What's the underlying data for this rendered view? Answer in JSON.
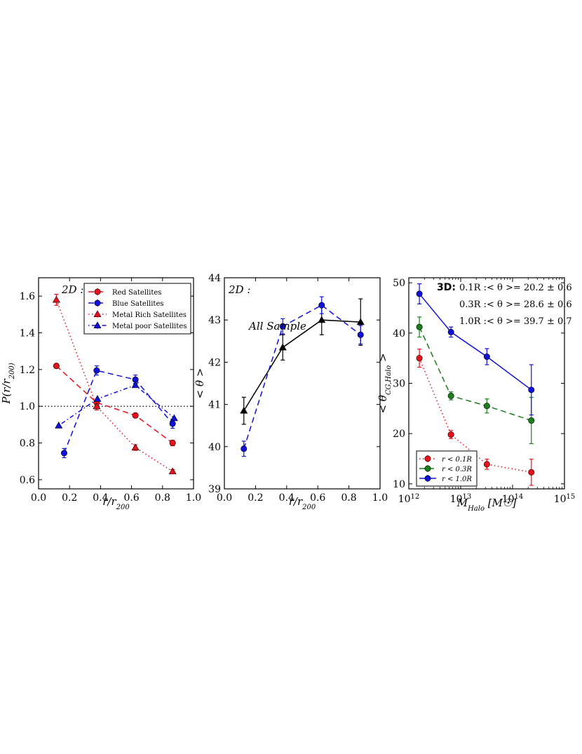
{
  "chart_data": [
    {
      "type": "line",
      "title": "",
      "annotation": "2D :",
      "xlabel": "r/r200",
      "ylabel": "P(r/r200)",
      "xlim": [
        0.0,
        1.0
      ],
      "ylim": [
        0.55,
        1.7
      ],
      "xticks": [
        "0.0",
        "0.2",
        "0.4",
        "0.6",
        "0.8",
        "1.0"
      ],
      "yticks": [
        "0.6",
        "0.8",
        "1.0",
        "1.2",
        "1.4",
        "1.6"
      ],
      "reference_line": 1.0,
      "legend_position": "top-right",
      "series": [
        {
          "name": "Red Satellites",
          "color": "#e8101a",
          "marker": "circle",
          "dash": "8,5",
          "x": [
            0.115,
            0.375,
            0.625,
            0.865
          ],
          "y": [
            1.22,
            1.02,
            0.95,
            0.8
          ],
          "err": [
            0.012,
            0.015,
            0.012,
            0.015
          ]
        },
        {
          "name": "Blue Satellites",
          "color": "#1010d8",
          "marker": "circle",
          "dash": "8,5",
          "x": [
            0.165,
            0.375,
            0.625,
            0.865
          ],
          "y": [
            0.745,
            1.195,
            1.145,
            0.905
          ],
          "err": [
            0.025,
            0.025,
            0.025,
            0.025
          ]
        },
        {
          "name": "Metal Rich Satellites",
          "color": "#e8101a",
          "marker": "triangle",
          "dash": "1.5,3.5",
          "x": [
            0.115,
            0.375,
            0.625,
            0.865
          ],
          "y": [
            1.58,
            1.0,
            0.775,
            0.645
          ],
          "err": [
            0.03,
            0.02,
            0.015,
            0.01
          ]
        },
        {
          "name": "Metal poor Satellites",
          "color": "#1010d8",
          "marker": "triangle",
          "dash": "1.5,3.5,6,3.5",
          "x": [
            0.13,
            0.38,
            0.625,
            0.875
          ],
          "y": [
            0.895,
            1.04,
            1.115,
            0.935
          ],
          "err": [
            0.0,
            0.0,
            0.01,
            0.0
          ]
        }
      ]
    },
    {
      "type": "line",
      "title": "",
      "annotation": "2D :",
      "annotation2": "All Sample",
      "xlabel": "r/r200",
      "ylabel": "< θ >",
      "xlim": [
        0.0,
        1.0
      ],
      "ylim": [
        39.0,
        44.0
      ],
      "xticks": [
        "0.0",
        "0.2",
        "0.4",
        "0.6",
        "0.8",
        "1.0"
      ],
      "yticks": [
        "39",
        "40",
        "41",
        "42",
        "43",
        "44"
      ],
      "series": [
        {
          "color": "#000000",
          "marker": "triangle",
          "dash": "",
          "x": [
            0.125,
            0.375,
            0.625,
            0.875
          ],
          "y": [
            40.85,
            42.35,
            43.0,
            42.95
          ],
          "err": [
            0.32,
            0.3,
            0.35,
            0.55
          ]
        },
        {
          "color": "#1010d8",
          "marker": "circle",
          "dash": "8,5",
          "x": [
            0.125,
            0.375,
            0.625,
            0.875
          ],
          "y": [
            39.95,
            42.85,
            43.35,
            42.65
          ],
          "err": [
            0.18,
            0.18,
            0.2,
            0.22
          ]
        }
      ]
    },
    {
      "type": "line",
      "title": "",
      "annotation": "3D:",
      "notes": [
        "0.1R :< θ >= 20.2 ± 0.6",
        "0.3R :< θ >= 28.6 ± 0.6",
        "1.0R :< θ >= 39.7 ± 0.7"
      ],
      "xlabel": "M_Halo [M☉]",
      "ylabel": "< θ_CG,Halo >",
      "xscale": "log",
      "xlim": [
        1000000000000.0,
        1000000000000000.0
      ],
      "ylim": [
        9.0,
        51.0
      ],
      "xtick_exponents": [
        "12",
        "13",
        "14",
        "15"
      ],
      "xtick_base": "10",
      "yticks": [
        "10",
        "20",
        "30",
        "40",
        "50"
      ],
      "legend_position": "bottom-left",
      "series": [
        {
          "name": "r < 0.1R",
          "color": "#e8101a",
          "marker": "circle",
          "dash": "1.5,3.5",
          "x": [
            1600000000000.0,
            6500000000000.0,
            32000000000000.0,
            230000000000000.0
          ],
          "y": [
            35.0,
            19.8,
            13.9,
            12.3
          ],
          "err": [
            1.8,
            0.8,
            1.0,
            2.6
          ]
        },
        {
          "name": "r < 0.3R",
          "color": "#1a7f1a",
          "marker": "circle",
          "dash": "8,5",
          "x": [
            1600000000000.0,
            6500000000000.0,
            32000000000000.0,
            230000000000000.0
          ],
          "y": [
            41.2,
            27.5,
            25.5,
            22.6
          ],
          "err": [
            2.0,
            0.8,
            1.4,
            4.6
          ]
        },
        {
          "name": "r < 1.0R",
          "color": "#1010d8",
          "marker": "circle",
          "dash": "",
          "x": [
            1600000000000.0,
            6500000000000.0,
            32000000000000.0,
            230000000000000.0
          ],
          "y": [
            47.8,
            40.2,
            35.3,
            28.7
          ],
          "err": [
            2.0,
            1.0,
            1.6,
            5.0
          ]
        }
      ]
    }
  ]
}
